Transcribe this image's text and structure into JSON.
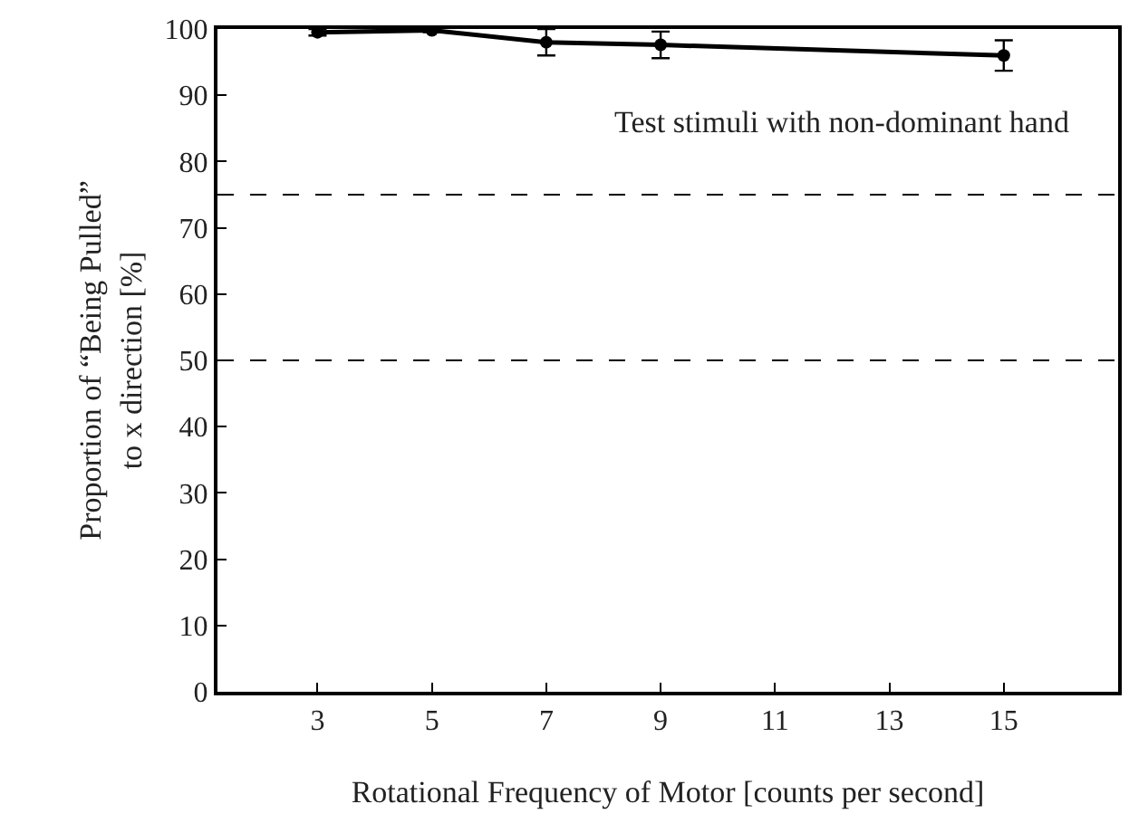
{
  "chart_data": {
    "type": "line",
    "xlabel": "Rotational Frequency of Motor [counts per second]",
    "ylabel": "Proportion of “Being Pulled”\nto x direction [%]",
    "x": [
      3,
      5,
      7,
      9,
      15
    ],
    "series": [
      {
        "color": "#000000",
        "values": [
          99.5,
          99.8,
          98,
          97.6,
          96
        ],
        "errors": [
          0.5,
          0.3,
          2,
          2,
          2.3
        ]
      }
    ],
    "xlim": [
      1.25,
      17
    ],
    "xticks": [
      3,
      5,
      7,
      9,
      11,
      13,
      15
    ],
    "ylim": [
      0,
      100
    ],
    "yticks": [
      0,
      10,
      20,
      30,
      40,
      50,
      60,
      70,
      80,
      90,
      100
    ],
    "ref_lines": [
      {
        "axis": "y",
        "value": 75,
        "color": "#000000",
        "line_style": "dashed"
      },
      {
        "axis": "y",
        "value": 50,
        "color": "#000000",
        "line_style": "dashed"
      }
    ],
    "annotations": [
      "Test stimuli with non-dominant hand"
    ],
    "marker": "circle",
    "line_style": "solid"
  }
}
